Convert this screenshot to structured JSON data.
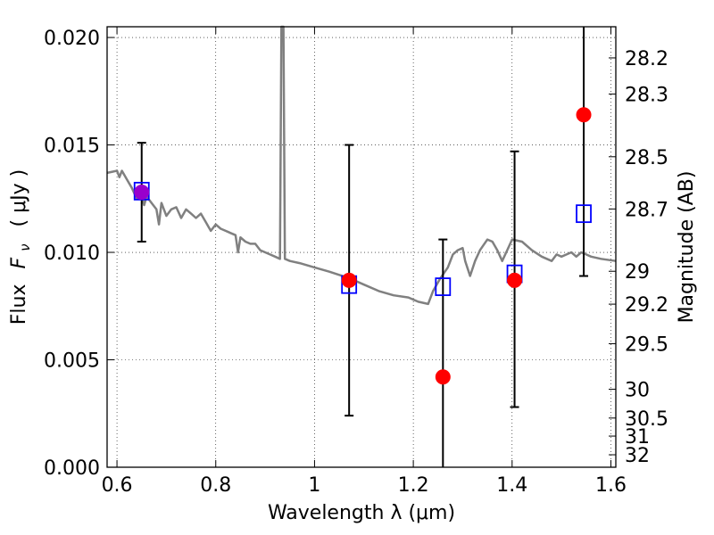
{
  "chart_data": {
    "type": "scatter",
    "xlabel": "Wavelength  λ (μm)",
    "ylabel_flux": "Flux",
    "ylabel_symbol": "F",
    "ylabel_subscript": "ν",
    "ylabel_unit": "( μJy )",
    "ylabel_right": "Magnitude (AB)",
    "xlim": [
      0.58,
      1.61
    ],
    "ylim": [
      0.0,
      0.0205
    ],
    "grid": true,
    "x_ticks": [
      0.6,
      0.8,
      1.0,
      1.2,
      1.4,
      1.6
    ],
    "x_tick_labels": [
      "0.6",
      "0.8",
      "1",
      "1.2",
      "1.4",
      "1.6"
    ],
    "y_ticks": [
      0.0,
      0.005,
      0.01,
      0.015,
      0.02
    ],
    "y_tick_labels": [
      "0.000",
      "0.005",
      "0.010",
      "0.015",
      "0.020"
    ],
    "right_ticks": [
      {
        "label": "28.2",
        "flux": 0.01905
      },
      {
        "label": "28.3",
        "flux": 0.01737
      },
      {
        "label": "28.5",
        "flux": 0.01445
      },
      {
        "label": "28.7",
        "flux": 0.01202
      },
      {
        "label": "29",
        "flux": 0.00912
      },
      {
        "label": "29.2",
        "flux": 0.00759
      },
      {
        "label": "29.5",
        "flux": 0.00575
      },
      {
        "label": "30",
        "flux": 0.00363
      },
      {
        "label": "30.5",
        "flux": 0.00229
      },
      {
        "label": "31",
        "flux": 0.00145
      },
      {
        "label": "32",
        "flux": 0.00058
      }
    ],
    "series": [
      {
        "kind": "model_spectrum",
        "color": "#808080",
        "points": [
          [
            0.58,
            0.0137
          ],
          [
            0.6,
            0.0138
          ],
          [
            0.605,
            0.0135
          ],
          [
            0.61,
            0.0138
          ],
          [
            0.62,
            0.0134
          ],
          [
            0.63,
            0.013
          ],
          [
            0.64,
            0.0125
          ],
          [
            0.645,
            0.013
          ],
          [
            0.655,
            0.0122
          ],
          [
            0.66,
            0.0126
          ],
          [
            0.67,
            0.0123
          ],
          [
            0.68,
            0.012
          ],
          [
            0.685,
            0.0113
          ],
          [
            0.69,
            0.0123
          ],
          [
            0.7,
            0.0117
          ],
          [
            0.71,
            0.012
          ],
          [
            0.72,
            0.0121
          ],
          [
            0.73,
            0.0116
          ],
          [
            0.74,
            0.012
          ],
          [
            0.75,
            0.0118
          ],
          [
            0.76,
            0.0116
          ],
          [
            0.77,
            0.0118
          ],
          [
            0.78,
            0.0114
          ],
          [
            0.79,
            0.011
          ],
          [
            0.8,
            0.0113
          ],
          [
            0.81,
            0.0111
          ],
          [
            0.82,
            0.011
          ],
          [
            0.83,
            0.0109
          ],
          [
            0.84,
            0.0108
          ],
          [
            0.845,
            0.01
          ],
          [
            0.85,
            0.0107
          ],
          [
            0.86,
            0.0105
          ],
          [
            0.87,
            0.0104
          ],
          [
            0.88,
            0.0104
          ],
          [
            0.89,
            0.0101
          ],
          [
            0.9,
            0.01
          ],
          [
            0.91,
            0.0099
          ],
          [
            0.92,
            0.0098
          ],
          [
            0.93,
            0.0097
          ],
          [
            0.933,
            0.0205
          ],
          [
            0.937,
            0.0205
          ],
          [
            0.94,
            0.0097
          ],
          [
            0.95,
            0.0096
          ],
          [
            0.97,
            0.0095
          ],
          [
            1.0,
            0.0093
          ],
          [
            1.03,
            0.0091
          ],
          [
            1.07,
            0.0088
          ],
          [
            1.1,
            0.0085
          ],
          [
            1.13,
            0.0082
          ],
          [
            1.16,
            0.008
          ],
          [
            1.19,
            0.0079
          ],
          [
            1.21,
            0.0077
          ],
          [
            1.23,
            0.0076
          ],
          [
            1.24,
            0.0082
          ],
          [
            1.255,
            0.0088
          ],
          [
            1.27,
            0.0093
          ],
          [
            1.28,
            0.0099
          ],
          [
            1.29,
            0.0101
          ],
          [
            1.3,
            0.0102
          ],
          [
            1.305,
            0.0096
          ],
          [
            1.315,
            0.0089
          ],
          [
            1.325,
            0.0096
          ],
          [
            1.335,
            0.0101
          ],
          [
            1.35,
            0.0106
          ],
          [
            1.36,
            0.0105
          ],
          [
            1.37,
            0.0101
          ],
          [
            1.38,
            0.0096
          ],
          [
            1.39,
            0.0101
          ],
          [
            1.4,
            0.0106
          ],
          [
            1.42,
            0.0105
          ],
          [
            1.44,
            0.0101
          ],
          [
            1.46,
            0.0098
          ],
          [
            1.48,
            0.0096
          ],
          [
            1.49,
            0.0099
          ],
          [
            1.5,
            0.0098
          ],
          [
            1.51,
            0.0099
          ],
          [
            1.52,
            0.01
          ],
          [
            1.53,
            0.0098
          ],
          [
            1.54,
            0.01
          ],
          [
            1.55,
            0.0099
          ],
          [
            1.56,
            0.0098
          ],
          [
            1.58,
            0.0097
          ],
          [
            1.61,
            0.0096
          ]
        ]
      },
      {
        "kind": "model_photometry",
        "color": "#0000ff",
        "marker": "open-square",
        "points": [
          [
            0.65,
            0.01285
          ],
          [
            1.07,
            0.0085
          ],
          [
            1.26,
            0.0084
          ],
          [
            1.405,
            0.009
          ],
          [
            1.545,
            0.0118
          ]
        ]
      },
      {
        "kind": "observed_photometry",
        "marker": "filled-circle",
        "points": [
          {
            "x": 0.65,
            "y": 0.0128,
            "err_low": 0.0105,
            "err_high": 0.0151,
            "color": "#9900cc"
          },
          {
            "x": 1.07,
            "y": 0.0087,
            "err_low": 0.0024,
            "err_high": 0.015,
            "color": "#ff0000"
          },
          {
            "x": 1.26,
            "y": 0.0042,
            "err_low": 0.0,
            "err_high": 0.0106,
            "color": "#ff0000"
          },
          {
            "x": 1.405,
            "y": 0.0087,
            "err_low": 0.0028,
            "err_high": 0.0147,
            "color": "#ff0000"
          },
          {
            "x": 1.545,
            "y": 0.0164,
            "err_low": 0.0089,
            "err_high": 0.0205,
            "color": "#ff0000"
          }
        ]
      }
    ]
  }
}
